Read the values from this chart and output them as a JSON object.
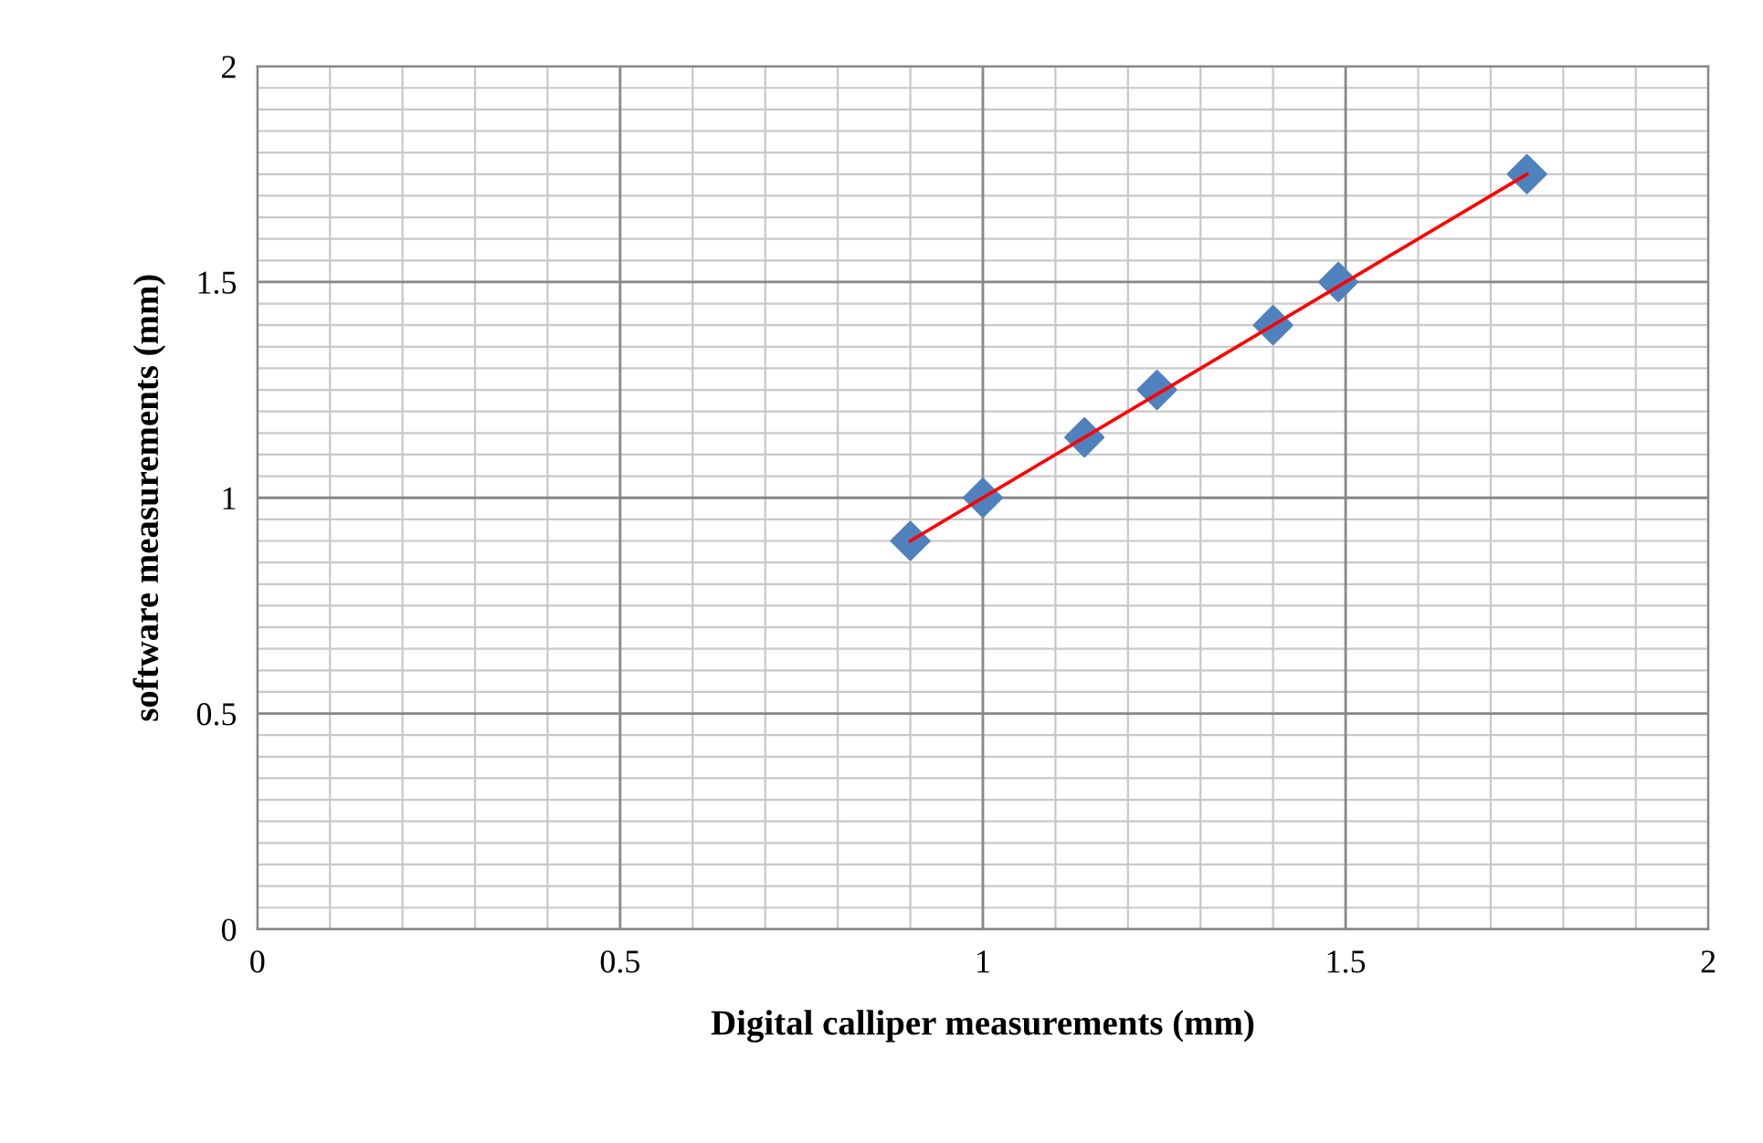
{
  "chart_data": {
    "type": "scatter",
    "xlabel": "Digital calliper measurements (mm)",
    "ylabel": "software measurements (mm)",
    "xlim": [
      0,
      2
    ],
    "ylim": [
      0,
      2
    ],
    "xticks": [
      0,
      0.5,
      1,
      1.5,
      2
    ],
    "yticks": [
      0,
      0.5,
      1,
      1.5,
      2
    ],
    "grid": true,
    "series": [
      {
        "color": "#4f81bd",
        "marker": "diamond",
        "x": [
          0.9,
          1.0,
          1.14,
          1.24,
          1.4,
          1.49,
          1.75
        ],
        "values": [
          0.9,
          1.0,
          1.14,
          1.25,
          1.4,
          1.5,
          1.75
        ]
      },
      {
        "type": "line",
        "color": "#ff0000",
        "marker": "none",
        "x": [
          0.9,
          1.75
        ],
        "values": [
          0.9,
          1.75
        ]
      }
    ]
  }
}
